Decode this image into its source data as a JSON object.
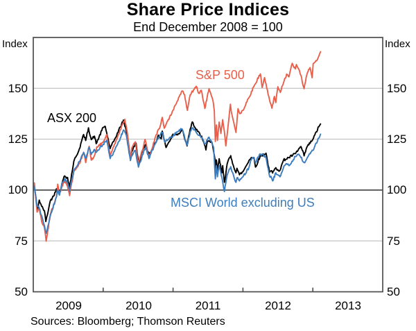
{
  "header": {
    "title": "Share Price Indices",
    "subtitle": "End December 2008 = 100"
  },
  "axes": {
    "y_unit_left": "Index",
    "y_unit_right": "Index",
    "y_ticks": [
      "150",
      "125",
      "100",
      "75",
      "50"
    ],
    "x_labels": [
      "2009",
      "2010",
      "2011",
      "2012",
      "2013"
    ]
  },
  "source_note": "Sources: Bloomberg; Thomson Reuters",
  "chart_data": {
    "type": "line",
    "title": "Share Price Indices",
    "subtitle": "End December 2008 = 100",
    "ylabel": "Index",
    "ylim": [
      50,
      175
    ],
    "xlim_decimal_years": [
      2009.0,
      2014.0
    ],
    "x_tick_years": [
      2010,
      2011,
      2012,
      2013
    ],
    "gridlines": [
      75,
      125,
      150
    ],
    "baseline": 100,
    "legend_position": "inline-labels",
    "series": [
      {
        "name": "ASX 200",
        "color": "#000000",
        "points": [
          [
            2009.0,
            100
          ],
          [
            2009.015,
            102.2
          ],
          [
            2009.06,
            89.8
          ],
          [
            2009.085,
            95.1
          ],
          [
            2009.12,
            92
          ],
          [
            2009.16,
            89.8
          ],
          [
            2009.18,
            84.5
          ],
          [
            2009.245,
            94.9
          ],
          [
            2009.29,
            97
          ],
          [
            2009.33,
            100.6
          ],
          [
            2009.375,
            99
          ],
          [
            2009.41,
            102.6
          ],
          [
            2009.44,
            106.7
          ],
          [
            2009.49,
            106.2
          ],
          [
            2009.52,
            101.5
          ],
          [
            2009.58,
            114.2
          ],
          [
            2009.62,
            117
          ],
          [
            2009.66,
            120.3
          ],
          [
            2009.72,
            127.3
          ],
          [
            2009.75,
            124.4
          ],
          [
            2009.79,
            130.6
          ],
          [
            2009.83,
            124.8
          ],
          [
            2009.875,
            126.5
          ],
          [
            2009.9,
            122.8
          ],
          [
            2010.0,
            130.8
          ],
          [
            2010.03,
            131.3
          ],
          [
            2010.1,
            120.4
          ],
          [
            2010.16,
            124.6
          ],
          [
            2010.245,
            131.0
          ],
          [
            2010.29,
            134.4
          ],
          [
            2010.33,
            129.2
          ],
          [
            2010.39,
            115.5
          ],
          [
            2010.41,
            119.0
          ],
          [
            2010.47,
            123.1
          ],
          [
            2010.505,
            113.4
          ],
          [
            2010.58,
            120.7
          ],
          [
            2010.61,
            122.5
          ],
          [
            2010.655,
            117.5
          ],
          [
            2010.75,
            123.1
          ],
          [
            2010.79,
            127
          ],
          [
            2010.83,
            125.2
          ],
          [
            2010.845,
            129.0
          ],
          [
            2010.9,
            120.9
          ],
          [
            2011.0,
            127.5
          ],
          [
            2011.085,
            127.7
          ],
          [
            2011.13,
            129.6
          ],
          [
            2011.2,
            121.7
          ],
          [
            2011.245,
            130.0
          ],
          [
            2011.275,
            133.5
          ],
          [
            2011.33,
            129.6
          ],
          [
            2011.41,
            126.5
          ],
          [
            2011.47,
            119.7
          ],
          [
            2011.49,
            123.8
          ],
          [
            2011.555,
            123.6
          ],
          [
            2011.58,
            118.9
          ],
          [
            2011.6,
            115
          ],
          [
            2011.605,
            107.1
          ],
          [
            2011.62,
            114.8
          ],
          [
            2011.635,
            109
          ],
          [
            2011.66,
            115.4
          ],
          [
            2011.7,
            108.5
          ],
          [
            2011.71,
            112
          ],
          [
            2011.735,
            103.8
          ],
          [
            2011.775,
            113
          ],
          [
            2011.825,
            116.9
          ],
          [
            2011.832,
            115.5
          ],
          [
            2011.9,
            108.5
          ],
          [
            2011.915,
            110.7
          ],
          [
            2011.95,
            107.5
          ],
          [
            2012.0,
            109.0
          ],
          [
            2012.085,
            114.5
          ],
          [
            2012.12,
            116
          ],
          [
            2012.16,
            115.5
          ],
          [
            2012.18,
            111.3
          ],
          [
            2012.245,
            116.5
          ],
          [
            2012.33,
            118.1
          ],
          [
            2012.38,
            108.7
          ],
          [
            2012.41,
            109.5
          ],
          [
            2012.425,
            108.4
          ],
          [
            2012.47,
            111
          ],
          [
            2012.5,
            110.0
          ],
          [
            2012.53,
            109.7
          ],
          [
            2012.58,
            114.7
          ],
          [
            2012.66,
            116.0
          ],
          [
            2012.75,
            117.9
          ],
          [
            2012.83,
            121.4
          ],
          [
            2012.875,
            116.8
          ],
          [
            2012.915,
            121.1
          ],
          [
            2013.0,
            124.9
          ],
          [
            2013.085,
            131.1
          ],
          [
            2013.11,
            132.5
          ]
        ]
      },
      {
        "name": "S&P 500",
        "color": "#E8604C",
        "points": [
          [
            2009.0,
            100
          ],
          [
            2009.015,
            103.5
          ],
          [
            2009.055,
            89.2
          ],
          [
            2009.085,
            91.4
          ],
          [
            2009.12,
            84.5
          ],
          [
            2009.16,
            81.4
          ],
          [
            2009.185,
            74.9
          ],
          [
            2009.245,
            88.3
          ],
          [
            2009.33,
            96.6
          ],
          [
            2009.35,
            102.9
          ],
          [
            2009.37,
            97.7
          ],
          [
            2009.41,
            101.8
          ],
          [
            2009.45,
            104.8
          ],
          [
            2009.49,
            101.8
          ],
          [
            2009.52,
            97.3
          ],
          [
            2009.58,
            109.3
          ],
          [
            2009.66,
            113.0
          ],
          [
            2009.72,
            118.6
          ],
          [
            2009.75,
            113.5
          ],
          [
            2009.8,
            121.5
          ],
          [
            2009.83,
            114.7
          ],
          [
            2009.875,
            117
          ],
          [
            2009.91,
            121.3
          ],
          [
            2010.0,
            123.5
          ],
          [
            2010.05,
            127.3
          ],
          [
            2010.1,
            117.0
          ],
          [
            2010.16,
            122.3
          ],
          [
            2010.245,
            129.5
          ],
          [
            2010.31,
            134.8
          ],
          [
            2010.33,
            131.4
          ],
          [
            2010.35,
            127
          ],
          [
            2010.39,
            115.5
          ],
          [
            2010.41,
            120.6
          ],
          [
            2010.46,
            123.7
          ],
          [
            2010.5,
            113.2
          ],
          [
            2010.58,
            122.0
          ],
          [
            2010.6,
            124.9
          ],
          [
            2010.655,
            115.9
          ],
          [
            2010.75,
            126.3
          ],
          [
            2010.815,
            131.3
          ],
          [
            2010.845,
            135.7
          ],
          [
            2010.875,
            130.4
          ],
          [
            2011.0,
            139.2
          ],
          [
            2011.05,
            142.8
          ],
          [
            2011.13,
            148.7
          ],
          [
            2011.165,
            146.9
          ],
          [
            2011.205,
            139.2
          ],
          [
            2011.245,
            146.8
          ],
          [
            2011.33,
            151.0
          ],
          [
            2011.37,
            147.5
          ],
          [
            2011.405,
            149
          ],
          [
            2011.455,
            140.1
          ],
          [
            2011.49,
            146.2
          ],
          [
            2011.515,
            149.8
          ],
          [
            2011.575,
            143.1
          ],
          [
            2011.59,
            138.9
          ],
          [
            2011.605,
            123.9
          ],
          [
            2011.62,
            132
          ],
          [
            2011.635,
            124.4
          ],
          [
            2011.66,
            133.4
          ],
          [
            2011.685,
            127.8
          ],
          [
            2011.71,
            134.6
          ],
          [
            2011.745,
            125.3
          ],
          [
            2011.755,
            121.7
          ],
          [
            2011.82,
            142.2
          ],
          [
            2011.832,
            138.7
          ],
          [
            2011.9,
            128.3
          ],
          [
            2011.93,
            140
          ],
          [
            2011.955,
            137.5
          ],
          [
            2012.0,
            139.2
          ],
          [
            2012.085,
            145.3
          ],
          [
            2012.16,
            151.2
          ],
          [
            2012.25,
            157.1
          ],
          [
            2012.275,
            150.4
          ],
          [
            2012.31,
            155.3
          ],
          [
            2012.37,
            146
          ],
          [
            2012.415,
            140.2
          ],
          [
            2012.45,
            146
          ],
          [
            2012.47,
            143
          ],
          [
            2012.5,
            150.8
          ],
          [
            2012.535,
            148.0
          ],
          [
            2012.58,
            152.7
          ],
          [
            2012.625,
            157
          ],
          [
            2012.66,
            155.7
          ],
          [
            2012.705,
            162.3
          ],
          [
            2012.75,
            159.5
          ],
          [
            2012.765,
            161.7
          ],
          [
            2012.83,
            156.3
          ],
          [
            2012.875,
            149.8
          ],
          [
            2012.915,
            156.8
          ],
          [
            2012.96,
            160.2
          ],
          [
            2012.99,
            155.2
          ],
          [
            2013.005,
            162.1
          ],
          [
            2013.055,
            163.5
          ],
          [
            2013.085,
            165.8
          ],
          [
            2013.11,
            168.0
          ]
        ]
      },
      {
        "name": "MSCI World excluding US",
        "color": "#3C7DBF",
        "points": [
          [
            2009.0,
            100
          ],
          [
            2009.015,
            102
          ],
          [
            2009.055,
            92
          ],
          [
            2009.085,
            91
          ],
          [
            2009.16,
            82.5
          ],
          [
            2009.185,
            78.8
          ],
          [
            2009.245,
            87.5
          ],
          [
            2009.33,
            96.5
          ],
          [
            2009.35,
            100
          ],
          [
            2009.375,
            97.5
          ],
          [
            2009.41,
            103.5
          ],
          [
            2009.45,
            105.5
          ],
          [
            2009.49,
            103.5
          ],
          [
            2009.52,
            99.5
          ],
          [
            2009.58,
            109.5
          ],
          [
            2009.66,
            114
          ],
          [
            2009.72,
            118.5
          ],
          [
            2009.75,
            115.5
          ],
          [
            2009.8,
            121
          ],
          [
            2009.83,
            117.5
          ],
          [
            2009.875,
            120
          ],
          [
            2009.9,
            118.5
          ],
          [
            2010.0,
            122.5
          ],
          [
            2010.05,
            124.5
          ],
          [
            2010.1,
            115.5
          ],
          [
            2010.16,
            119
          ],
          [
            2010.245,
            125.5
          ],
          [
            2010.29,
            129.5
          ],
          [
            2010.33,
            127
          ],
          [
            2010.39,
            114.5
          ],
          [
            2010.41,
            117
          ],
          [
            2010.46,
            119.5
          ],
          [
            2010.505,
            111.3
          ],
          [
            2010.58,
            119
          ],
          [
            2010.61,
            121
          ],
          [
            2010.655,
            115.5
          ],
          [
            2010.75,
            123.5
          ],
          [
            2010.815,
            127
          ],
          [
            2010.845,
            128.3
          ],
          [
            2010.88,
            123.5
          ],
          [
            2011.0,
            126.5
          ],
          [
            2011.05,
            128.5
          ],
          [
            2011.13,
            130
          ],
          [
            2011.2,
            122
          ],
          [
            2011.245,
            128.5
          ],
          [
            2011.275,
            130.5
          ],
          [
            2011.33,
            128.5
          ],
          [
            2011.41,
            126
          ],
          [
            2011.455,
            122.5
          ],
          [
            2011.49,
            124.5
          ],
          [
            2011.515,
            126
          ],
          [
            2011.58,
            121
          ],
          [
            2011.605,
            105.5
          ],
          [
            2011.62,
            112
          ],
          [
            2011.635,
            106.5
          ],
          [
            2011.66,
            112
          ],
          [
            2011.7,
            106
          ],
          [
            2011.735,
            99.3
          ],
          [
            2011.775,
            107.5
          ],
          [
            2011.825,
            111.5
          ],
          [
            2011.832,
            110.5
          ],
          [
            2011.9,
            103.8
          ],
          [
            2011.915,
            106
          ],
          [
            2011.95,
            104.5
          ],
          [
            2012.0,
            106.5
          ],
          [
            2012.085,
            111
          ],
          [
            2012.12,
            115
          ],
          [
            2012.16,
            116
          ],
          [
            2012.18,
            113.5
          ],
          [
            2012.245,
            117.8
          ],
          [
            2012.3,
            117
          ],
          [
            2012.33,
            116
          ],
          [
            2012.38,
            106.8
          ],
          [
            2012.41,
            106
          ],
          [
            2012.425,
            104.5
          ],
          [
            2012.47,
            108.5
          ],
          [
            2012.5,
            107.5
          ],
          [
            2012.53,
            106.5
          ],
          [
            2012.58,
            111
          ],
          [
            2012.625,
            113
          ],
          [
            2012.66,
            112
          ],
          [
            2012.75,
            116.5
          ],
          [
            2012.79,
            117.5
          ],
          [
            2012.83,
            116
          ],
          [
            2012.875,
            113.5
          ],
          [
            2012.915,
            115.5
          ],
          [
            2013.0,
            119.5
          ],
          [
            2013.085,
            125.5
          ],
          [
            2013.11,
            127.5
          ]
        ]
      }
    ]
  }
}
